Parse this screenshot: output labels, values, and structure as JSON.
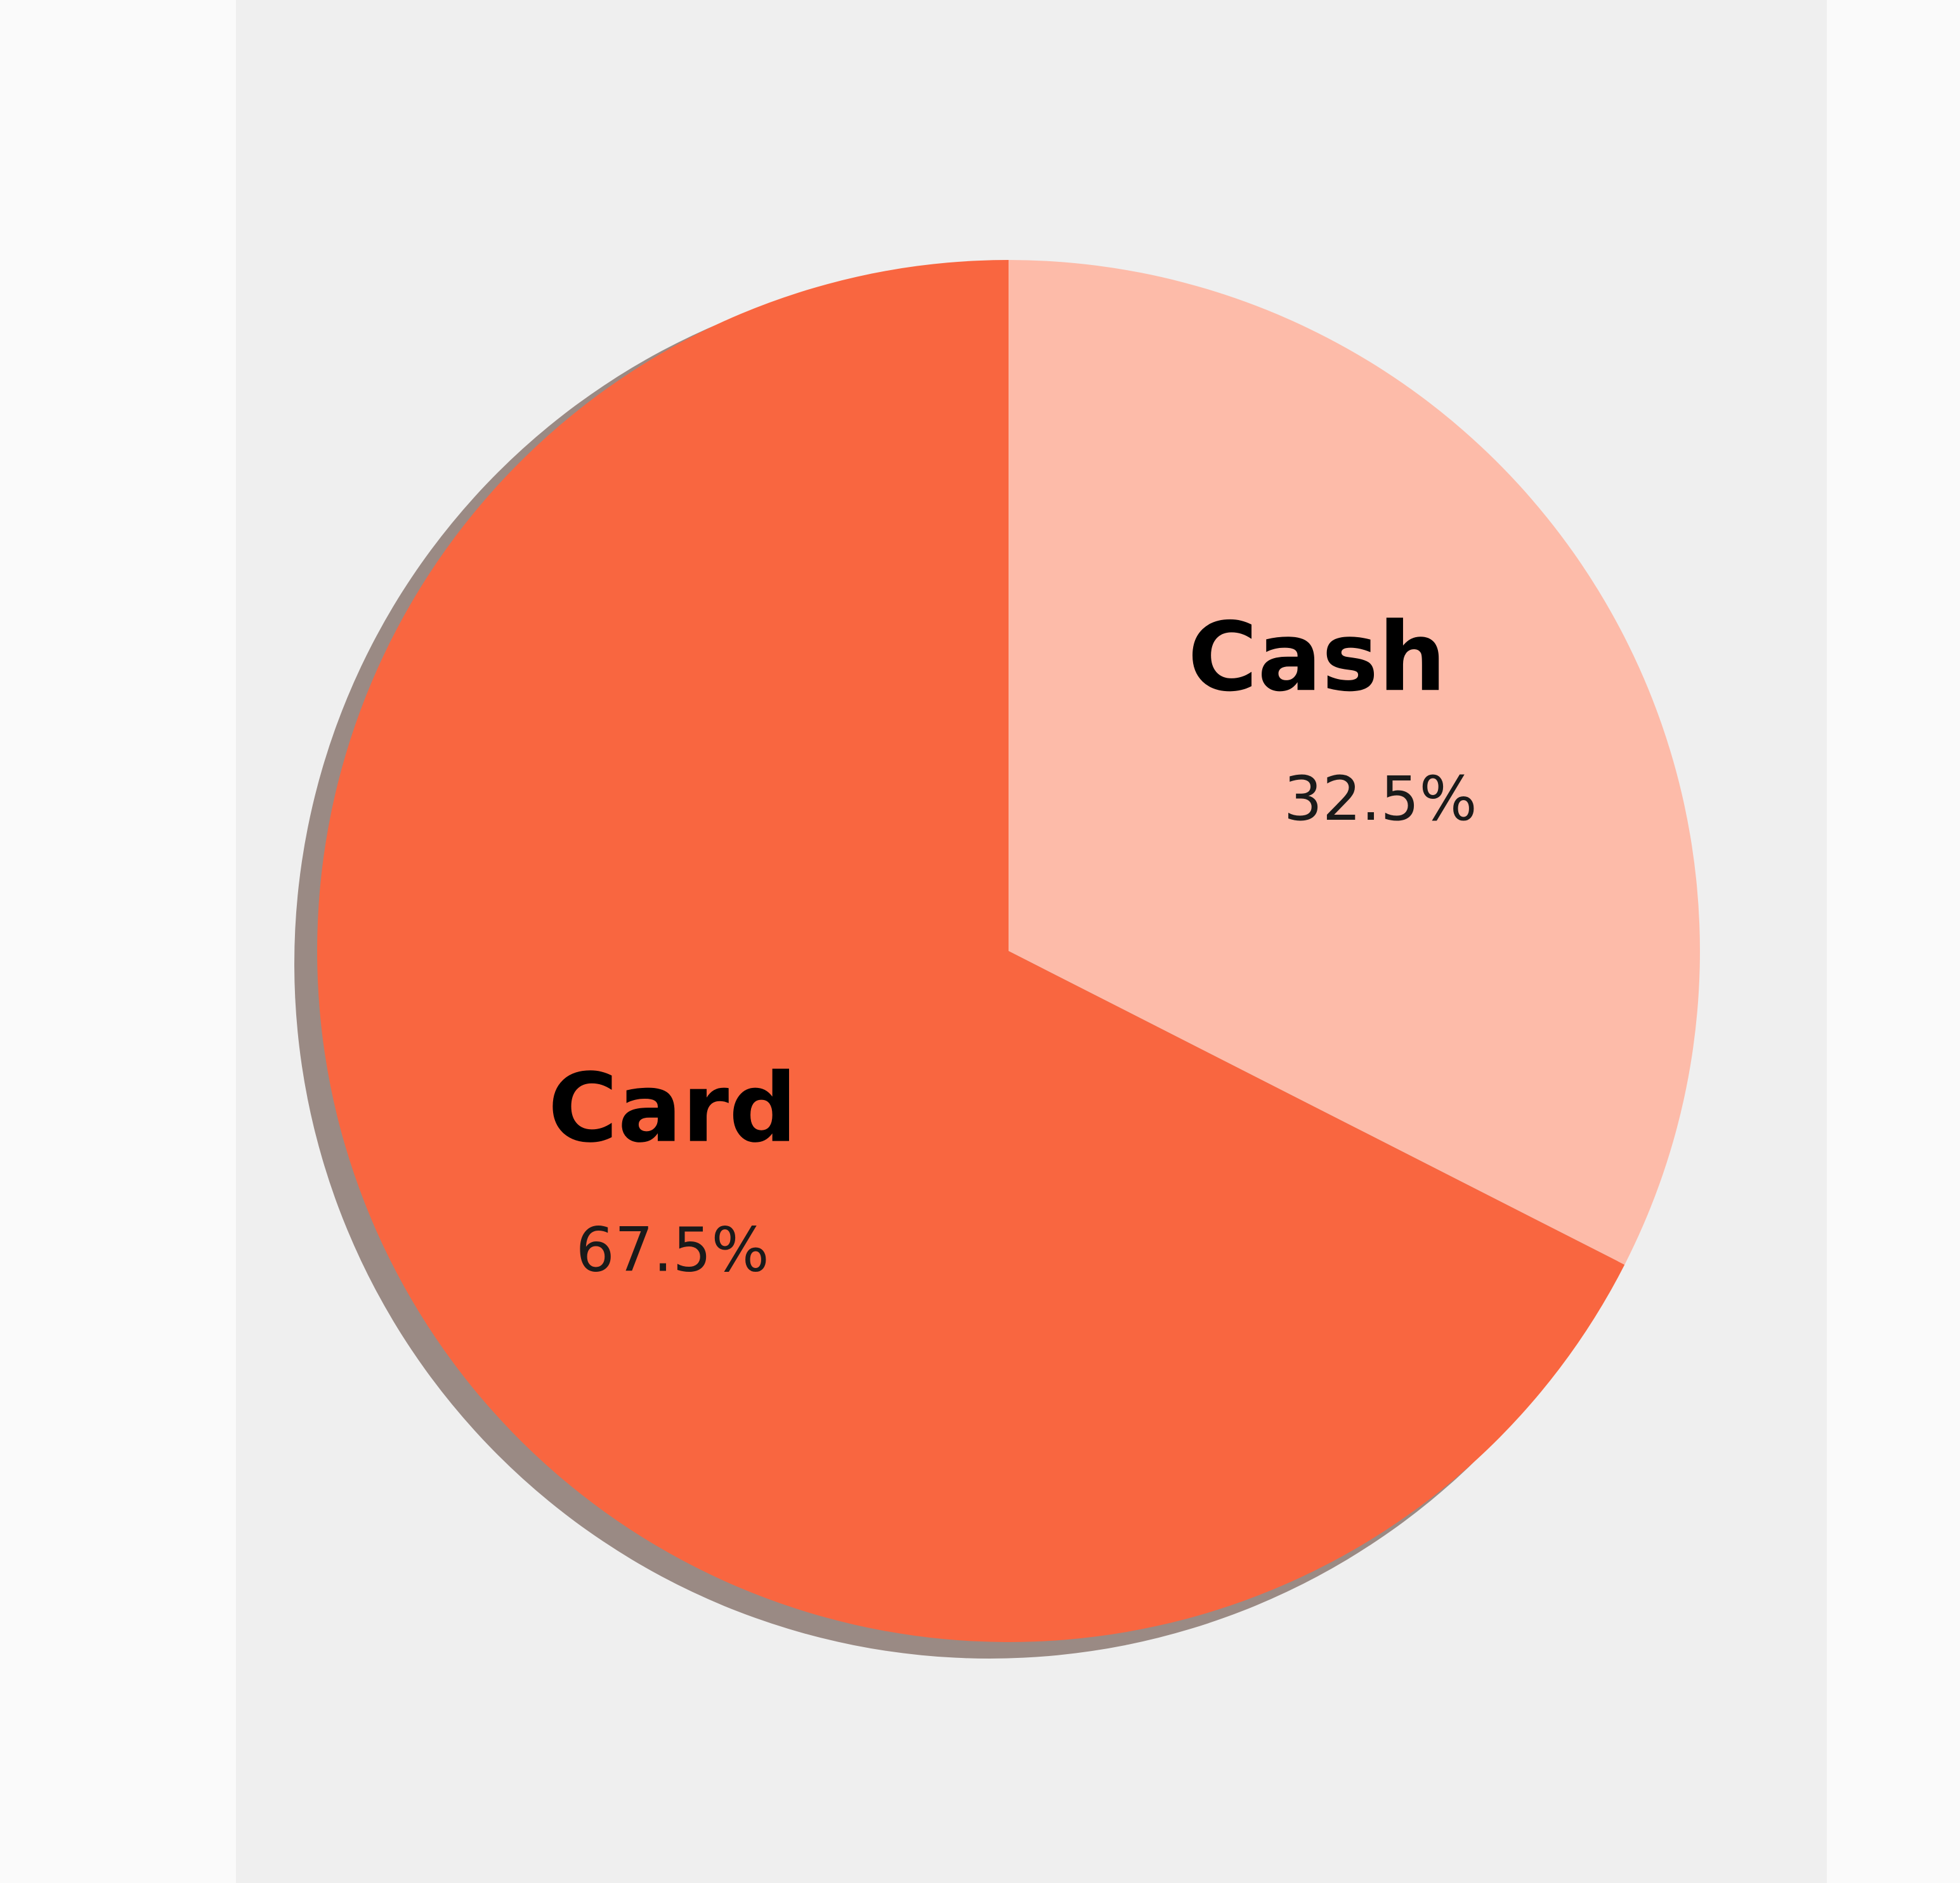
{
  "chart_data": {
    "type": "pie",
    "title": "",
    "start_angle_deg": 0,
    "direction": "clockwise",
    "slices": [
      {
        "label": "Cash",
        "value": 32.5,
        "value_label": "32.5%",
        "color": "#fdbba9"
      },
      {
        "label": "Card",
        "value": 67.5,
        "value_label": "67.5%",
        "color": "#f96640"
      }
    ],
    "shadow_color": "#9a8a84",
    "background_color": "#efefef"
  }
}
